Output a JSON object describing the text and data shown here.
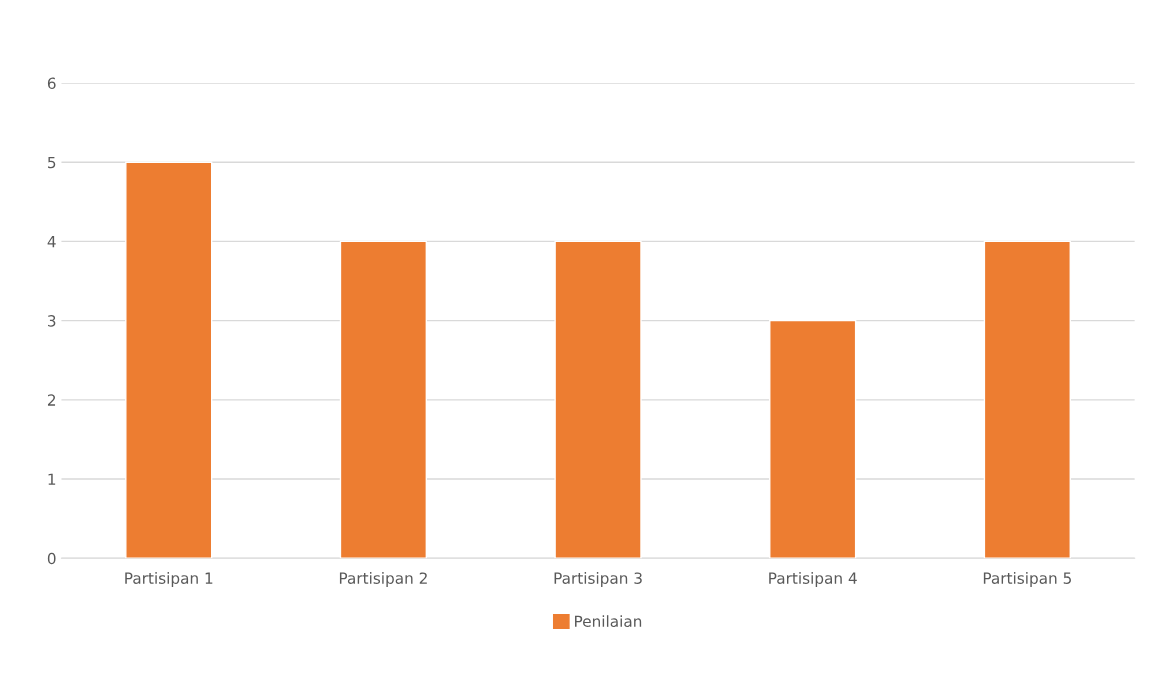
{
  "chart_data": {
    "type": "bar",
    "categories": [
      "Partisipan 1",
      "Partisipan 2",
      "Partisipan 3",
      "Partisipan 4",
      "Partisipan 5"
    ],
    "series": [
      {
        "name": "Penilaian",
        "color": "#ed7d31",
        "values": [
          5,
          4,
          4,
          3,
          4
        ]
      }
    ],
    "ylim": [
      0,
      6
    ],
    "yticks": [
      0,
      1,
      2,
      3,
      4,
      5,
      6
    ],
    "grid": "y",
    "legend": "bottom"
  }
}
